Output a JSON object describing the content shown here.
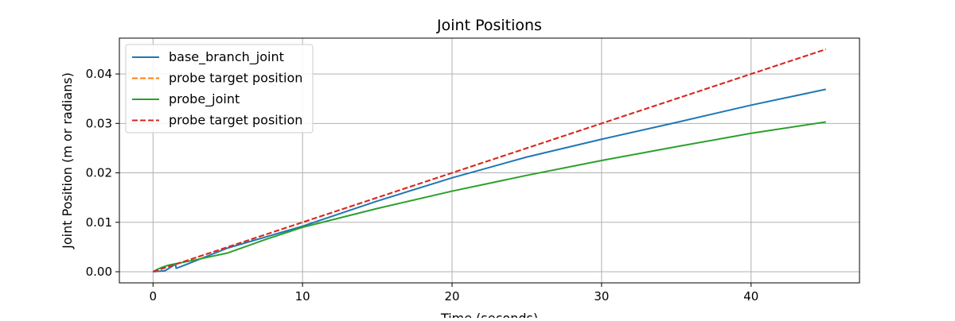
{
  "chart_data": {
    "type": "line",
    "title": "Joint Positions",
    "xlabel": "Time (seconds)",
    "ylabel": "Joint Position (m or radians)",
    "xlim": [
      -2.25,
      47.25
    ],
    "ylim": [
      -0.00225,
      0.04725
    ],
    "xticks": [
      0,
      10,
      20,
      30,
      40
    ],
    "yticks": [
      0.0,
      0.01,
      0.02,
      0.03,
      0.04
    ],
    "xtick_labels": [
      "0",
      "10",
      "20",
      "30",
      "40"
    ],
    "ytick_labels": [
      "0.00",
      "0.01",
      "0.02",
      "0.03",
      "0.04"
    ],
    "grid": true,
    "legend_position": "top-left",
    "series": [
      {
        "name": "base_branch_joint",
        "color": "#1f77b4",
        "style": "solid",
        "x": [
          0,
          0.8,
          1.5,
          1.55,
          2,
          5,
          10,
          15,
          20,
          25,
          30,
          35,
          40,
          45
        ],
        "y": [
          0,
          0.0002,
          0.0015,
          0.0007,
          0.0012,
          0.0048,
          0.0092,
          0.0143,
          0.019,
          0.0232,
          0.0268,
          0.0302,
          0.0337,
          0.0369
        ]
      },
      {
        "name": "probe target position",
        "color": "#ff7f0e",
        "style": "dashed",
        "x": [
          0,
          45
        ],
        "y": [
          0,
          0.045
        ]
      },
      {
        "name": "probe_joint",
        "color": "#2ca02c",
        "style": "solid",
        "x": [
          0,
          0.3,
          0.6,
          1,
          1.5,
          2,
          3,
          5,
          7.5,
          10,
          15,
          20,
          25,
          30,
          35,
          40,
          45
        ],
        "y": [
          0,
          0.0005,
          0.0009,
          0.0013,
          0.0016,
          0.0019,
          0.0025,
          0.0038,
          0.0065,
          0.009,
          0.0128,
          0.0163,
          0.0195,
          0.0225,
          0.0253,
          0.028,
          0.0303
        ]
      },
      {
        "name": "probe target position",
        "color": "#d62728",
        "style": "dashed",
        "x": [
          0,
          45
        ],
        "y": [
          0,
          0.045
        ]
      }
    ]
  }
}
